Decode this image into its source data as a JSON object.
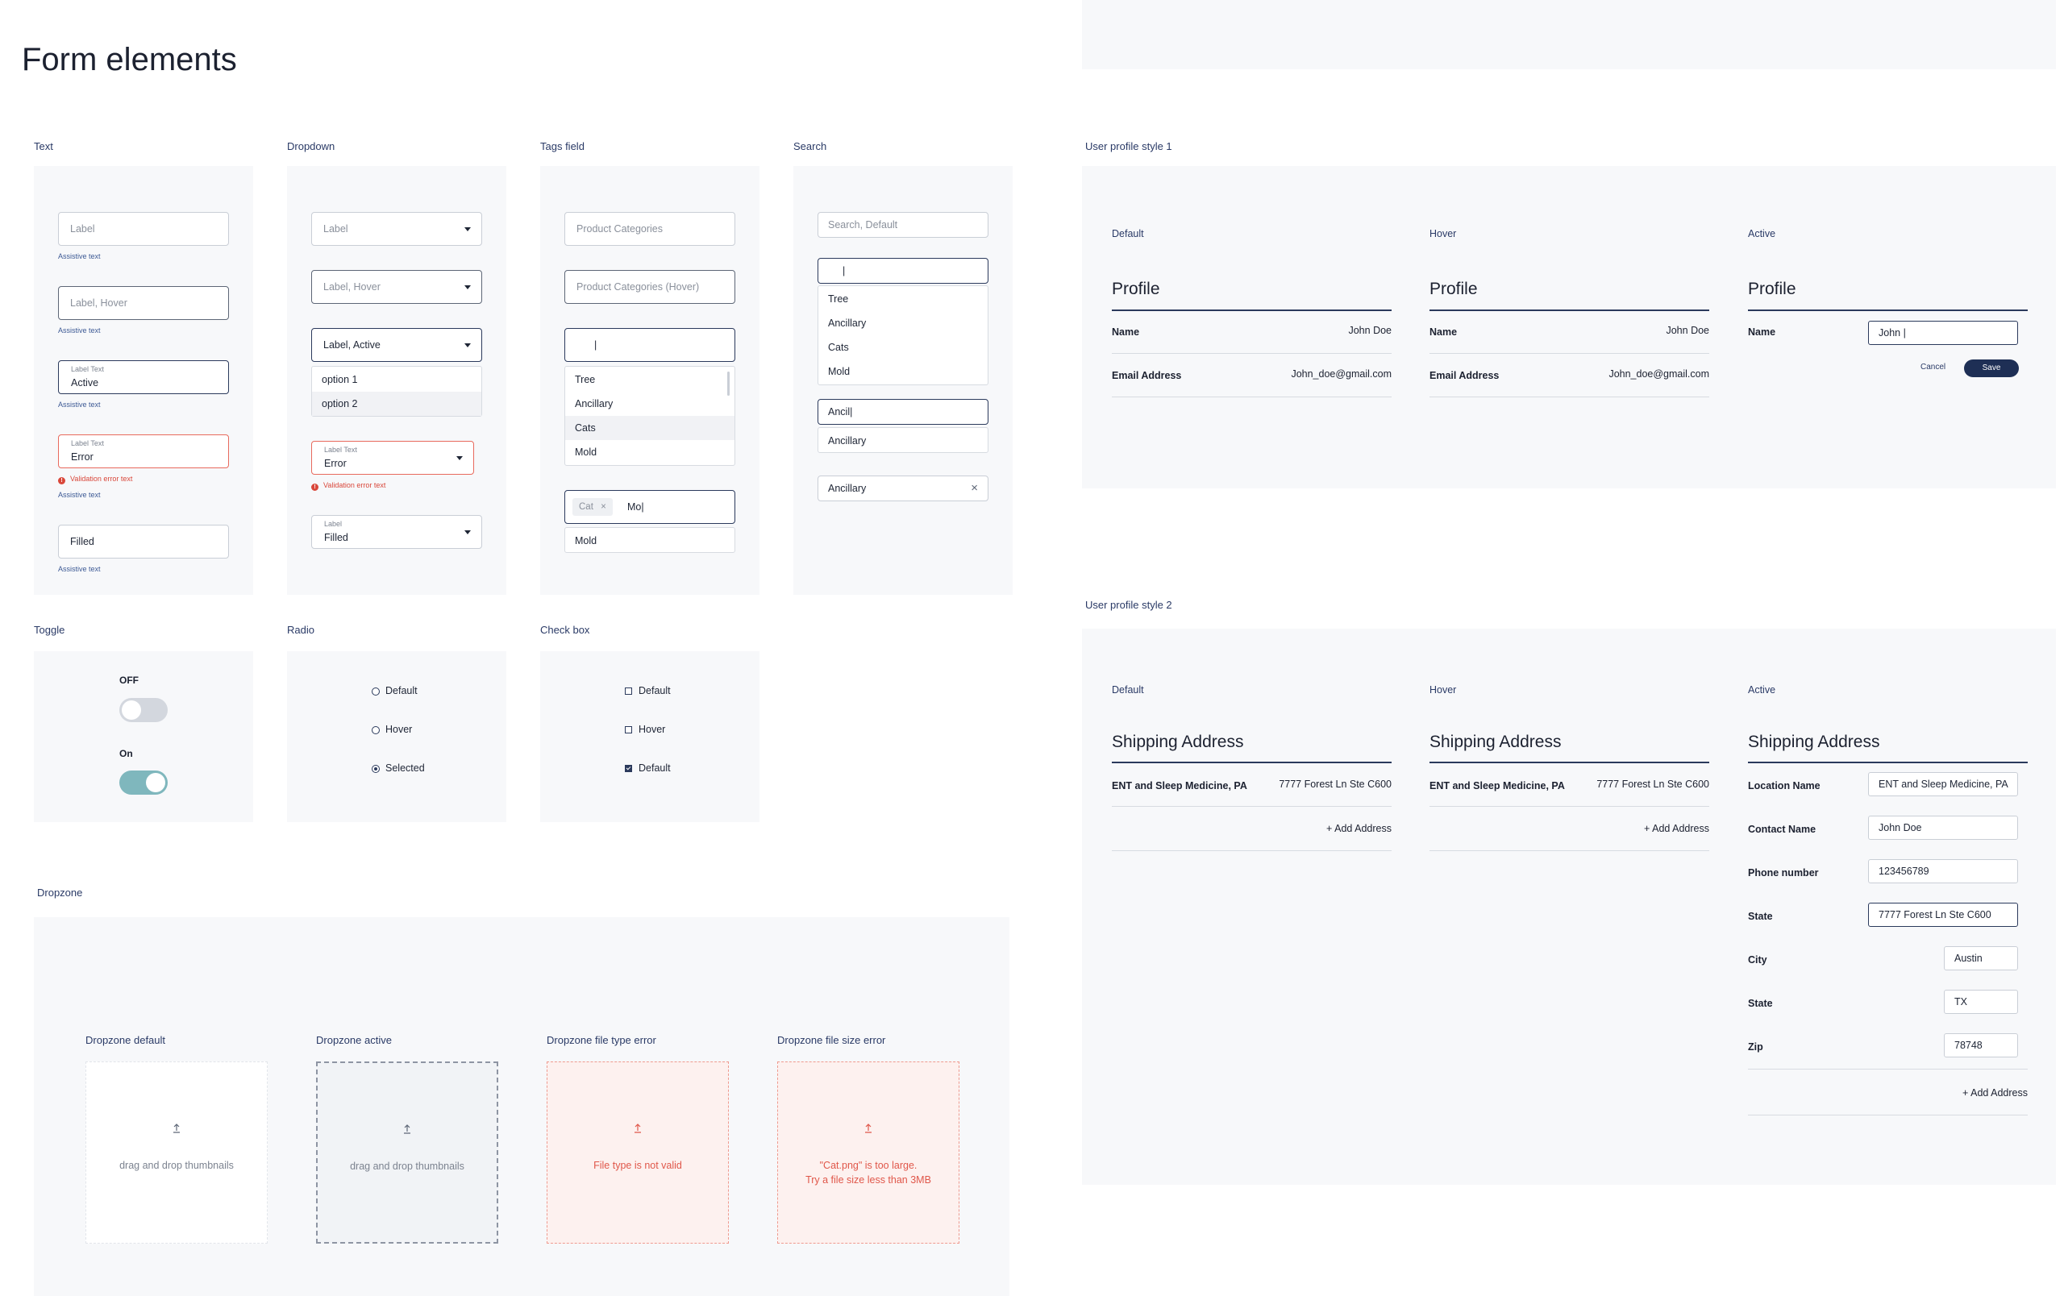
{
  "title": "Form elements",
  "sections": {
    "text": "Text",
    "dropdown": "Dropdown",
    "tags": "Tags field",
    "search": "Search",
    "toggle": "Toggle",
    "radio": "Radio",
    "checkbox": "Check box",
    "dropzone": "Dropzone",
    "profile1": "User profile style 1",
    "profile2": "User profile style 2"
  },
  "text_fields": {
    "default": "Label",
    "hover": "Label, Hover",
    "small_label": "Label Text",
    "active_value": "Active",
    "error_value": "Error",
    "filled": "Filled",
    "assistive": "Assistive text",
    "validation": "Validation error text",
    "error_icon": "!"
  },
  "dropdown": {
    "default": "Label",
    "hover": "Label, Hover",
    "active": "Label, Active",
    "options": [
      "option 1",
      "option 2"
    ],
    "small_label": "Label Text",
    "error_value": "Error",
    "validation": "Validation error text",
    "filled_label": "Label",
    "filled_value": "Filled"
  },
  "tags": {
    "default": "Product Categories",
    "hover": "Product Categories (Hover)",
    "cursor": "|",
    "options": [
      "Tree",
      "Ancillary",
      "Cats",
      "Mold"
    ],
    "chip": "Cat",
    "chip_close": "×",
    "typed": "Mo|",
    "suggestion": "Mold"
  },
  "search": {
    "placeholder": "Search, Default",
    "cursor": "|",
    "options": [
      "Tree",
      "Ancillary",
      "Cats",
      "Mold"
    ],
    "typed": "Ancil|",
    "suggestion": "Ancillary",
    "selected": "Ancillary",
    "clear": "×"
  },
  "toggle": {
    "off": "OFF",
    "on": "On"
  },
  "radio": [
    "Default",
    "Hover",
    "Selected"
  ],
  "checkbox": [
    "Default",
    "Hover",
    "Default"
  ],
  "dropzones": [
    {
      "title": "Dropzone default",
      "text": "drag and drop thumbnails"
    },
    {
      "title": "Dropzone active",
      "text": "drag and drop thumbnails"
    },
    {
      "title": "Dropzone file type error",
      "text": "File type is not valid"
    },
    {
      "title": "Dropzone file size error",
      "text": "\"Cat.png\" is too large.",
      "text2": "Try a file size less than 3MB"
    }
  ],
  "profile1": {
    "states": [
      "Default",
      "Hover",
      "Active"
    ],
    "heading": "Profile",
    "name_label": "Name",
    "name_value": "John Doe",
    "email_label": "Email Address",
    "email_value": "John_doe@gmail.com",
    "active_input": "John |",
    "cancel": "Cancel",
    "save": "Save"
  },
  "profile2": {
    "states": [
      "Default",
      "Hover",
      "Active"
    ],
    "heading": "Shipping Address",
    "location": "ENT and Sleep Medicine, PA",
    "address": "7777 Forest Ln Ste C600",
    "add": "+ Add Address",
    "fields": [
      {
        "label": "Location Name",
        "value": "ENT and Sleep Medicine, PA"
      },
      {
        "label": "Contact Name",
        "value": "John Doe"
      },
      {
        "label": "Phone number",
        "value": "123456789"
      },
      {
        "label": "State",
        "value": "7777 Forest Ln Ste C600"
      },
      {
        "label": "City",
        "value": "Austin"
      },
      {
        "label": "State",
        "value": "TX"
      },
      {
        "label": "Zip",
        "value": "78748"
      }
    ]
  },
  "colors": {
    "accent": "#2b3a5c",
    "error": "#e86a5d",
    "toggle_on": "#7fb7bd",
    "toggle_off": "#d3d7de"
  }
}
